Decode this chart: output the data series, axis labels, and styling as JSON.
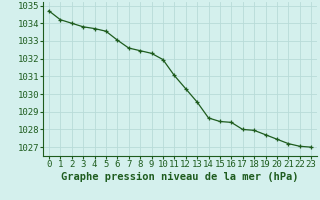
{
  "x": [
    0,
    1,
    2,
    3,
    4,
    5,
    6,
    7,
    8,
    9,
    10,
    11,
    12,
    13,
    14,
    15,
    16,
    17,
    18,
    19,
    20,
    21,
    22,
    23
  ],
  "y": [
    1034.7,
    1034.2,
    1034.0,
    1033.8,
    1033.7,
    1033.55,
    1033.05,
    1032.6,
    1032.45,
    1032.3,
    1031.95,
    1031.05,
    1030.3,
    1029.55,
    1028.65,
    1028.45,
    1028.4,
    1028.0,
    1027.95,
    1027.7,
    1027.45,
    1027.2,
    1027.05,
    1027.0
  ],
  "ylim": [
    1026.5,
    1035.2
  ],
  "yticks": [
    1027,
    1028,
    1029,
    1030,
    1031,
    1032,
    1033,
    1034,
    1035
  ],
  "xticks": [
    0,
    1,
    2,
    3,
    4,
    5,
    6,
    7,
    8,
    9,
    10,
    11,
    12,
    13,
    14,
    15,
    16,
    17,
    18,
    19,
    20,
    21,
    22,
    23
  ],
  "xlabel": "Graphe pression niveau de la mer (hPa)",
  "line_color": "#1e5c1e",
  "marker": "+",
  "marker_color": "#1e5c1e",
  "bg_color": "#d4f0ed",
  "grid_color": "#b8dbd8",
  "tick_color": "#1e5c1e",
  "label_color": "#1e5c1e",
  "xlabel_fontsize": 7.5,
  "tick_fontsize": 6.5
}
